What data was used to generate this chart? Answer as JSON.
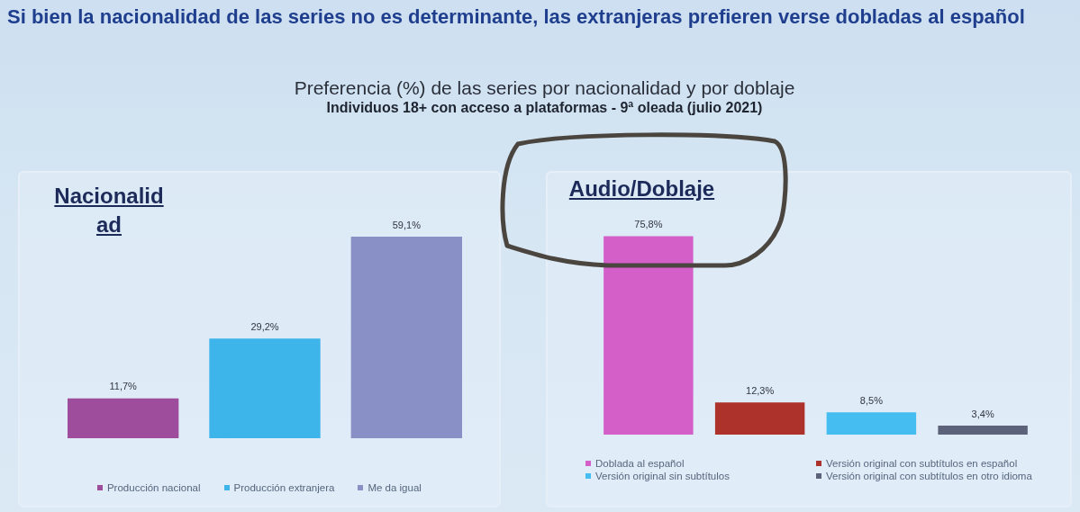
{
  "chart_data": [
    {
      "type": "other",
      "title": "Si bien la nacionalidad de las series no es determinante, las extranjeras prefieren verse dobladas al español",
      "subtitle": "Preferencia (%) de las series por nacionalidad y por doblaje",
      "annotations": [
        "Individuos 18+ con acceso a plataformas - 9ª oleada (julio 2021)"
      ]
    },
    {
      "type": "bar",
      "title": "Nacionalidad",
      "categories": [
        null,
        null,
        null
      ],
      "stacked": true,
      "series": [
        {
          "name": "Producción nacional",
          "color": "#9e4c9c",
          "values": [
            11.7,
            null,
            null
          ],
          "value_labels": [
            "11,7%",
            null,
            null
          ]
        },
        {
          "name": "Producción extranjera",
          "color": "#3db4ea",
          "values": [
            null,
            29.2,
            null
          ],
          "value_labels": [
            null,
            "29,2%",
            null
          ]
        },
        {
          "name": "Me da igual",
          "color": "#8890c6",
          "values": [
            null,
            null,
            59.1
          ],
          "value_labels": [
            null,
            null,
            "59,1%"
          ]
        }
      ],
      "legend": "bottom",
      "tick_labels": false
    },
    {
      "type": "bar",
      "title": "Audio/Doblaje",
      "categories": [
        null,
        null,
        null,
        null
      ],
      "stacked": true,
      "series": [
        {
          "name": "Doblada al español",
          "color": "#d45fc9",
          "values": [
            75.8,
            null,
            null,
            null
          ],
          "value_labels": [
            "75,8%",
            null,
            null,
            null
          ]
        },
        {
          "name": "Versión original con subtítulos en español",
          "color": "#ad322b",
          "values": [
            null,
            12.3,
            null,
            null
          ],
          "value_labels": [
            null,
            "12,3%",
            null,
            null
          ]
        },
        {
          "name": "Versión original sin subtítulos",
          "color": "#45bdf0",
          "values": [
            null,
            null,
            8.5,
            null
          ],
          "value_labels": [
            null,
            null,
            "8,5%",
            null
          ]
        },
        {
          "name": "Versión original con subtítulos en otro idioma",
          "color": "#5b6279",
          "values": [
            null,
            null,
            null,
            3.4
          ],
          "value_labels": [
            null,
            null,
            null,
            "3,4%"
          ]
        }
      ],
      "legend": "bottom",
      "tick_labels": false
    }
  ]
}
